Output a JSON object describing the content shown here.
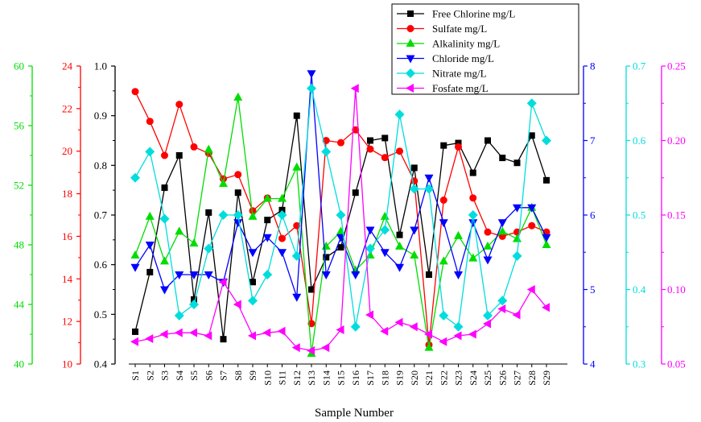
{
  "chart_data": {
    "type": "line",
    "xlabel": "Sample Number",
    "categories": [
      "S1",
      "S2",
      "S3",
      "S4",
      "S5",
      "S6",
      "S7",
      "S8",
      "S9",
      "S10",
      "S11",
      "S12",
      "S13",
      "S14",
      "S15",
      "S16",
      "S17",
      "S18",
      "S19",
      "S20",
      "S21",
      "S22",
      "S23",
      "S24",
      "S25",
      "S26",
      "S27",
      "S28",
      "S29"
    ],
    "legend_position": "top-right",
    "axes": [
      {
        "id": "fc",
        "range": [
          0.4,
          1.0
        ],
        "ticks": [
          "0.4",
          "0.5",
          "0.6",
          "0.7",
          "0.8",
          "0.9",
          "1.0"
        ],
        "color": "#000000"
      },
      {
        "id": "sul",
        "range": [
          10,
          24
        ],
        "ticks": [
          "10",
          "12",
          "14",
          "16",
          "18",
          "20",
          "22",
          "24"
        ],
        "color": "#ff0000"
      },
      {
        "id": "alk",
        "range": [
          40,
          60
        ],
        "ticks": [
          "40",
          "44",
          "48",
          "52",
          "56",
          "60"
        ],
        "color": "#00dd00"
      },
      {
        "id": "chl",
        "range": [
          4,
          8
        ],
        "ticks": [
          "4",
          "5",
          "6",
          "7",
          "8"
        ],
        "color": "#0000ff"
      },
      {
        "id": "nit",
        "range": [
          0.3,
          0.7
        ],
        "ticks": [
          "0.3",
          "0.4",
          "0.5",
          "0.6",
          "0.7"
        ],
        "color": "#00dddd"
      },
      {
        "id": "fos",
        "range": [
          0.05,
          0.25
        ],
        "ticks": [
          "0.05",
          "0.10",
          "0.15",
          "0.20",
          "0.25"
        ],
        "color": "#ff00ff"
      }
    ],
    "series": [
      {
        "name": "Free Chlorine    mg/L",
        "axis": "fc",
        "color": "#000000",
        "marker": "square",
        "values": [
          0.465,
          0.585,
          0.755,
          0.82,
          0.53,
          0.705,
          0.45,
          0.745,
          0.565,
          0.69,
          0.71,
          0.9,
          0.55,
          0.615,
          0.635,
          0.745,
          0.85,
          0.855,
          0.66,
          0.795,
          0.58,
          0.84,
          0.845,
          0.785,
          0.85,
          0.815,
          0.805,
          0.86,
          0.77
        ]
      },
      {
        "name": "Sulfate    mg/L",
        "axis": "sul",
        "color": "#ff0000",
        "marker": "circle",
        "values": [
          22.8,
          21.4,
          19.8,
          22.2,
          20.2,
          19.9,
          18.7,
          18.9,
          17.2,
          17.8,
          15.9,
          16.5,
          11.9,
          20.5,
          20.4,
          21.0,
          20.1,
          19.7,
          20.0,
          18.6,
          10.9,
          17.7,
          20.2,
          17.8,
          16.2,
          16.0,
          16.2,
          16.5,
          16.2
        ]
      },
      {
        "name": "Alkalinity    mg/L",
        "axis": "alk",
        "color": "#00dd00",
        "marker": "triangle-up",
        "values": [
          47.3,
          49.9,
          46.9,
          48.9,
          48.1,
          54.4,
          52.1,
          57.9,
          49.9,
          51.1,
          51.1,
          53.2,
          40.7,
          47.9,
          48.9,
          46.3,
          47.3,
          49.9,
          47.9,
          47.3,
          41.1,
          46.9,
          48.6,
          47.1,
          47.9,
          48.9,
          48.4,
          50.5,
          48.0
        ]
      },
      {
        "name": "Chloride    mg/L",
        "axis": "chl",
        "color": "#0000ff",
        "marker": "triangle-down",
        "values": [
          5.3,
          5.6,
          5.0,
          5.2,
          5.2,
          5.2,
          5.1,
          5.9,
          5.5,
          5.7,
          5.5,
          4.9,
          7.9,
          5.2,
          5.7,
          5.2,
          5.8,
          5.5,
          5.3,
          5.8,
          6.5,
          5.9,
          5.2,
          5.9,
          5.4,
          5.9,
          6.1,
          6.1,
          5.7
        ]
      },
      {
        "name": "Nitrate    mg/L",
        "axis": "nit",
        "color": "#00dddd",
        "marker": "diamond",
        "values": [
          0.55,
          0.585,
          0.495,
          0.365,
          0.38,
          0.455,
          0.5,
          0.5,
          0.385,
          0.42,
          0.5,
          0.445,
          0.67,
          0.585,
          0.5,
          0.35,
          0.455,
          0.48,
          0.635,
          0.535,
          0.535,
          0.365,
          0.35,
          0.5,
          0.365,
          0.385,
          0.445,
          0.65,
          0.6
        ]
      },
      {
        "name": "Fosfate    mg/L",
        "axis": "fos",
        "color": "#ff00ff",
        "marker": "triangle-left",
        "values": [
          0.065,
          0.067,
          0.07,
          0.071,
          0.071,
          0.069,
          0.105,
          0.09,
          0.069,
          0.071,
          0.072,
          0.061,
          0.059,
          0.061,
          0.073,
          0.235,
          0.083,
          0.072,
          0.078,
          0.075,
          0.07,
          0.065,
          0.069,
          0.07,
          0.077,
          0.087,
          0.083,
          0.1,
          0.088
        ]
      }
    ]
  }
}
